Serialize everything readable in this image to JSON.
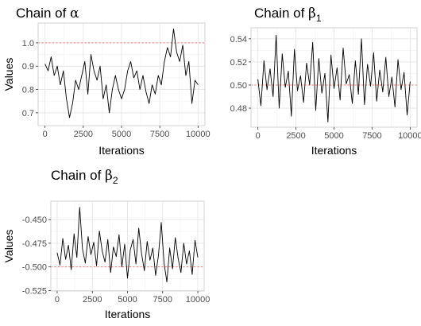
{
  "chart_data": [
    {
      "type": "line",
      "title": "Chain of ",
      "title_symbol": "α",
      "title_subscript": "",
      "xlabel": "Iterations",
      "ylabel": "Values",
      "xlim": [
        -450,
        10450
      ],
      "ylim": [
        0.645,
        1.085
      ],
      "xticks": [
        0,
        2500,
        5000,
        7500,
        10000
      ],
      "xtick_labels": [
        "0",
        "2500",
        "5000",
        "7500",
        "10000"
      ],
      "yticks": [
        0.7,
        0.8,
        0.9,
        1.0
      ],
      "ytick_labels": [
        "0.7",
        "0.8",
        "0.9",
        "1.0"
      ],
      "reference_line": 1.0,
      "reference_color": "#f8766d",
      "line_color": "#000000",
      "grid": true,
      "series": [
        {
          "x": [
            0,
            200,
            400,
            600,
            800,
            1000,
            1200,
            1400,
            1600,
            1800,
            2000,
            2200,
            2400,
            2600,
            2800,
            3000,
            3200,
            3400,
            3600,
            3800,
            4000,
            4200,
            4400,
            4600,
            4800,
            5000,
            5200,
            5400,
            5600,
            5800,
            6000,
            6200,
            6400,
            6600,
            6800,
            7000,
            7200,
            7400,
            7600,
            7800,
            8000,
            8200,
            8400,
            8600,
            8800,
            9000,
            9200,
            9400,
            9600,
            9800,
            10000
          ],
          "values": [
            0.91,
            0.88,
            0.94,
            0.86,
            0.9,
            0.82,
            0.88,
            0.76,
            0.68,
            0.74,
            0.84,
            0.8,
            0.86,
            0.92,
            0.78,
            0.95,
            0.88,
            0.84,
            0.9,
            0.76,
            0.82,
            0.7,
            0.8,
            0.86,
            0.8,
            0.76,
            0.8,
            0.88,
            0.92,
            0.85,
            0.88,
            0.8,
            0.86,
            0.79,
            0.74,
            0.82,
            0.78,
            0.86,
            0.82,
            0.92,
            0.98,
            0.94,
            1.06,
            0.96,
            0.92,
            0.99,
            0.86,
            0.92,
            0.74,
            0.84,
            0.82
          ]
        }
      ]
    },
    {
      "type": "line",
      "title": "Chain of ",
      "title_symbol": "β",
      "title_subscript": "1",
      "xlabel": "Iterations",
      "ylabel": "",
      "xlim": [
        -450,
        10450
      ],
      "ylim": [
        0.4635,
        0.5495
      ],
      "xticks": [
        0,
        2500,
        5000,
        7500,
        10000
      ],
      "xtick_labels": [
        "0",
        "2500",
        "5000",
        "7500",
        "10000"
      ],
      "yticks": [
        0.48,
        0.5,
        0.52,
        0.54
      ],
      "ytick_labels": [
        "0.48",
        "0.50",
        "0.52",
        "0.54"
      ],
      "reference_line": 0.5,
      "reference_color": "#f8766d",
      "line_color": "#000000",
      "grid": true,
      "series": [
        {
          "x": [
            0,
            200,
            400,
            600,
            800,
            1000,
            1200,
            1400,
            1600,
            1800,
            2000,
            2200,
            2400,
            2600,
            2800,
            3000,
            3200,
            3400,
            3600,
            3800,
            4000,
            4200,
            4400,
            4600,
            4800,
            5000,
            5200,
            5400,
            5600,
            5800,
            6000,
            6200,
            6400,
            6600,
            6800,
            7000,
            7200,
            7400,
            7600,
            7800,
            8000,
            8200,
            8400,
            8600,
            8800,
            9000,
            9200,
            9400,
            9600,
            9800,
            10000
          ],
          "values": [
            0.505,
            0.482,
            0.521,
            0.496,
            0.514,
            0.49,
            0.543,
            0.48,
            0.527,
            0.498,
            0.512,
            0.473,
            0.531,
            0.495,
            0.508,
            0.485,
            0.519,
            0.5,
            0.537,
            0.478,
            0.523,
            0.493,
            0.51,
            0.468,
            0.526,
            0.497,
            0.515,
            0.487,
            0.532,
            0.501,
            0.509,
            0.484,
            0.521,
            0.492,
            0.54,
            0.483,
            0.518,
            0.499,
            0.528,
            0.486,
            0.513,
            0.494,
            0.524,
            0.49,
            0.507,
            0.481,
            0.522,
            0.496,
            0.511,
            0.474,
            0.503
          ]
        }
      ]
    },
    {
      "type": "line",
      "title": "Chain of ",
      "title_symbol": "β",
      "title_subscript": "2",
      "xlabel": "Iterations",
      "ylabel": "Values",
      "xlim": [
        -450,
        10450
      ],
      "ylim": [
        -0.5255,
        -0.4305
      ],
      "xticks": [
        0,
        2500,
        5000,
        7500,
        10000
      ],
      "xtick_labels": [
        "0",
        "2500",
        "5000",
        "7500",
        "10000"
      ],
      "yticks": [
        -0.525,
        -0.5,
        -0.475,
        -0.45
      ],
      "ytick_labels": [
        "-0.525",
        "-0.500",
        "-0.475",
        "-0.450"
      ],
      "reference_line": -0.5,
      "reference_color": "#f8766d",
      "line_color": "#000000",
      "grid": true,
      "series": [
        {
          "x": [
            0,
            200,
            400,
            600,
            800,
            1000,
            1200,
            1400,
            1600,
            1800,
            2000,
            2200,
            2400,
            2600,
            2800,
            3000,
            3200,
            3400,
            3600,
            3800,
            4000,
            4200,
            4400,
            4600,
            4800,
            5000,
            5200,
            5400,
            5600,
            5800,
            6000,
            6200,
            6400,
            6600,
            6800,
            7000,
            7200,
            7400,
            7600,
            7800,
            8000,
            8200,
            8400,
            8600,
            8800,
            9000,
            9200,
            9400,
            9600,
            9800,
            10000
          ],
          "values": [
            -0.485,
            -0.498,
            -0.47,
            -0.492,
            -0.477,
            -0.503,
            -0.465,
            -0.49,
            -0.437,
            -0.481,
            -0.496,
            -0.468,
            -0.487,
            -0.474,
            -0.499,
            -0.462,
            -0.483,
            -0.495,
            -0.471,
            -0.506,
            -0.479,
            -0.489,
            -0.466,
            -0.5,
            -0.476,
            -0.512,
            -0.482,
            -0.471,
            -0.497,
            -0.459,
            -0.486,
            -0.504,
            -0.473,
            -0.493,
            -0.48,
            -0.509,
            -0.488,
            -0.453,
            -0.496,
            -0.516,
            -0.48,
            -0.502,
            -0.469,
            -0.491,
            -0.506,
            -0.475,
            -0.497,
            -0.483,
            -0.508,
            -0.472,
            -0.49
          ]
        }
      ]
    }
  ]
}
